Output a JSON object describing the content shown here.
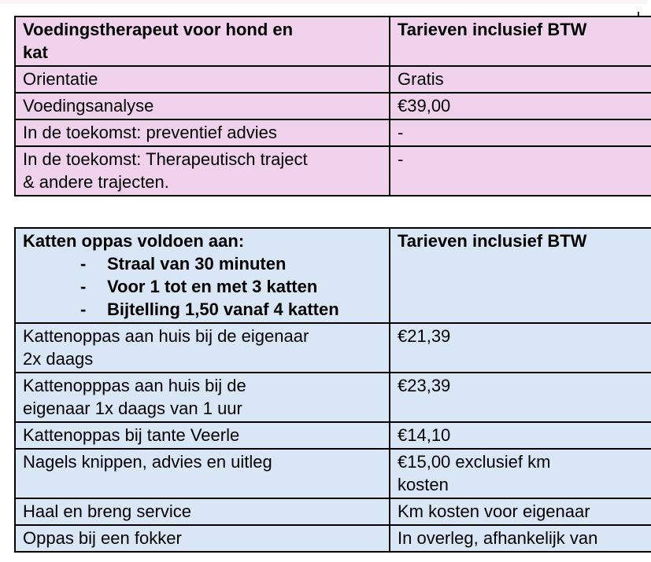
{
  "page": {
    "background": "#ffffff",
    "text_color": "#000000",
    "border_color": "#000000"
  },
  "table1": {
    "name": "Voedingstherapeut tarieven",
    "fill": "#f0d2ec",
    "header": {
      "service": "Voedingstherapeut voor hond en\nkat",
      "price": "Tarieven inclusief BTW"
    },
    "rows": [
      {
        "service": "Orientatie",
        "price": "Gratis"
      },
      {
        "service": "Voedingsanalyse",
        "price": "€39,00"
      },
      {
        "service": "In de toekomst: preventief advies",
        "price": "-"
      },
      {
        "service": "In de toekomst: Therapeutisch traject\n& andere trajecten.",
        "price": "-"
      }
    ]
  },
  "table2": {
    "name": "Katten oppas tarieven",
    "fill": "#d9e6f5",
    "header": {
      "title": "Katten oppas voldoen aan:",
      "bullet_char": "-",
      "bullets": [
        "Straal van 30 minuten",
        "Voor 1 tot en met 3 katten",
        "Bijtelling 1,50 vanaf 4 katten"
      ],
      "price": "Tarieven inclusief BTW"
    },
    "rows": [
      {
        "service": "Kattenoppas aan huis bij de eigenaar\n2x daags",
        "price": "€21,39"
      },
      {
        "service": "Kattenopppas aan huis bij de\neigenaar 1x daags van 1 uur",
        "price": "€23,39"
      },
      {
        "service": "Kattenoppas bij tante Veerle",
        "price": "€14,10"
      },
      {
        "service": "Nagels knippen, advies en uitleg",
        "price": "€15,00 exclusief km\nkosten"
      },
      {
        "service": "Haal en breng service",
        "price": "Km kosten voor eigenaar"
      },
      {
        "service": "Oppas bij een fokker",
        "price": "In overleg, afhankelijk van"
      }
    ]
  }
}
